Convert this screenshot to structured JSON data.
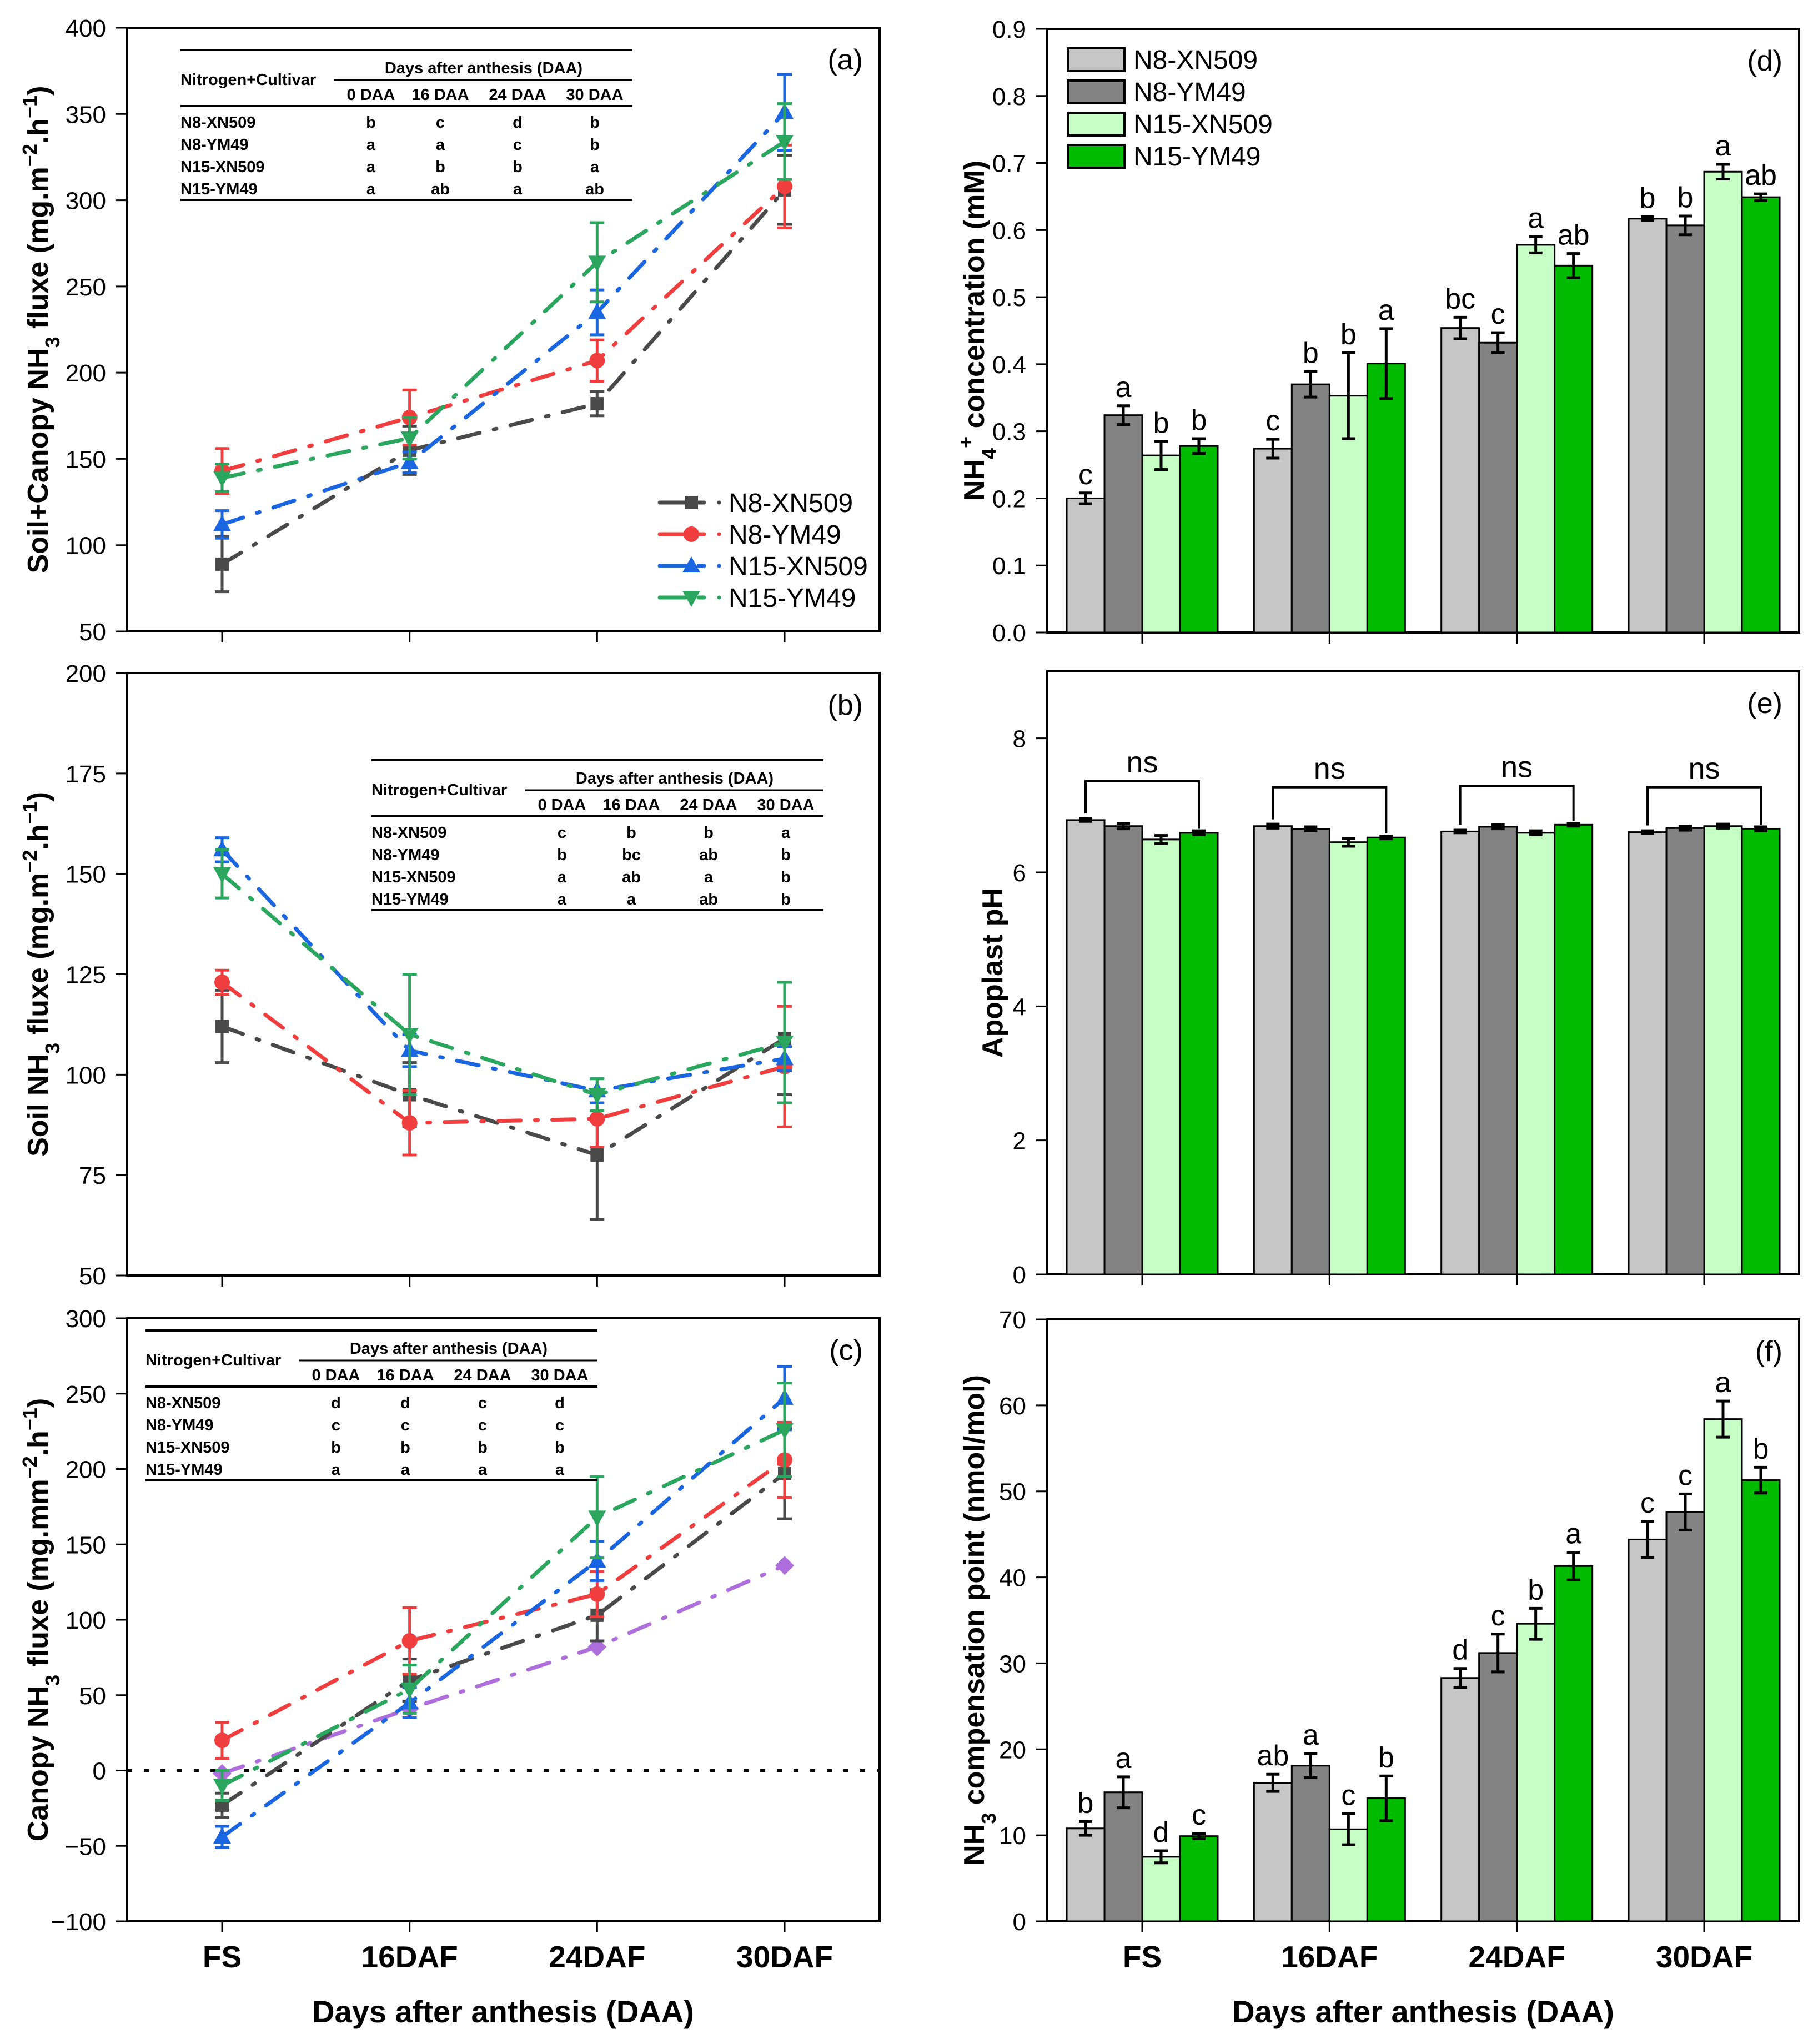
{
  "figure": {
    "xlabel": "Days after anthesis (DAA)",
    "categories": [
      "FS",
      "16DAF",
      "24DAF",
      "30DAF"
    ]
  },
  "chart_data": [
    {
      "panel": "a",
      "label": "(a)",
      "type": "line",
      "ylabel": "Soil+Canopy NH3 fluxe (mg.m−2.h−1)",
      "ylabel_segments": [
        {
          "t": "Soil+Canopy NH"
        },
        {
          "t": "3",
          "s": "sub"
        },
        {
          "t": " fluxe (mg.m"
        },
        {
          "t": "−2",
          "s": "sup"
        },
        {
          "t": ".h"
        },
        {
          "t": "−1",
          "s": "sup"
        },
        {
          "t": ")"
        }
      ],
      "xlabel": "",
      "categories": [
        "FS",
        "16DAF",
        "24DAF",
        "30DAF"
      ],
      "show_category_labels": false,
      "ylim": [
        50,
        400
      ],
      "yticks": [
        50,
        100,
        150,
        200,
        250,
        300,
        350,
        400
      ],
      "ytick_labels": [
        "50",
        "100",
        "150",
        "200",
        "250",
        "300",
        "350",
        "400"
      ],
      "series": [
        {
          "name": "N8-XN509",
          "marker": "square",
          "color": "#4a4a4a",
          "values": [
            89,
            155,
            182,
            306
          ],
          "errors": [
            16,
            14,
            7,
            20
          ]
        },
        {
          "name": "N8-YM49",
          "marker": "circle",
          "color": "#f03e3e",
          "values": [
            143,
            174,
            207,
            308
          ],
          "errors": [
            13,
            16,
            12,
            24
          ]
        },
        {
          "name": "N15-XN509",
          "marker": "triangle-up",
          "color": "#1a66e0",
          "values": [
            112,
            148,
            235,
            351
          ],
          "errors": [
            8,
            6,
            13,
            22
          ]
        },
        {
          "name": "N15-YM49",
          "marker": "triangle-down",
          "color": "#2aa65e",
          "values": [
            139,
            162,
            264,
            334
          ],
          "errors": [
            8,
            12,
            23,
            22
          ]
        }
      ],
      "legend": {
        "placement": "bottom-right",
        "entries": [
          "N8-XN509",
          "N8-YM49",
          "N15-XN509",
          "N15-YM49"
        ]
      },
      "table": {
        "placement": "top-left",
        "row_header": "Nitrogen+Cultivar",
        "group_header": "Days after anthesis (DAA)",
        "columns": [
          "0 DAA",
          "16 DAA",
          "24 DAA",
          "30 DAA"
        ],
        "rows": [
          {
            "name": "N8-XN509",
            "letters": [
              "b",
              "c",
              "d",
              "b"
            ]
          },
          {
            "name": "N8-YM49",
            "letters": [
              "a",
              "a",
              "c",
              "b"
            ]
          },
          {
            "name": "N15-XN509",
            "letters": [
              "a",
              "b",
              "b",
              "a"
            ]
          },
          {
            "name": "N15-YM49",
            "letters": [
              "a",
              "ab",
              "a",
              "ab"
            ]
          }
        ]
      }
    },
    {
      "panel": "b",
      "label": "(b)",
      "type": "line",
      "ylabel": "Soil NH3 fluxe (mg.m−2.h−1)",
      "ylabel_segments": [
        {
          "t": "Soil NH"
        },
        {
          "t": "3",
          "s": "sub"
        },
        {
          "t": " fluxe (mg.m"
        },
        {
          "t": "−2",
          "s": "sup"
        },
        {
          "t": ".h"
        },
        {
          "t": "−1",
          "s": "sup"
        },
        {
          "t": ")"
        }
      ],
      "xlabel": "",
      "categories": [
        "FS",
        "16DAF",
        "24DAF",
        "30DAF"
      ],
      "show_category_labels": false,
      "ylim": [
        50,
        200
      ],
      "yticks": [
        50,
        75,
        100,
        125,
        150,
        175,
        200
      ],
      "ytick_labels": [
        "50",
        "75",
        "100",
        "125",
        "150",
        "175",
        "200"
      ],
      "series": [
        {
          "name": "N8-XN509",
          "marker": "square",
          "color": "#4a4a4a",
          "values": [
            112,
            95,
            80,
            109
          ],
          "errors": [
            9,
            8,
            16,
            14
          ]
        },
        {
          "name": "N8-YM49",
          "marker": "circle",
          "color": "#f03e3e",
          "values": [
            123,
            88,
            89,
            102
          ],
          "errors": [
            3,
            8,
            7,
            15
          ]
        },
        {
          "name": "N15-XN509",
          "marker": "triangle-up",
          "color": "#1a66e0",
          "values": [
            156,
            106,
            96,
            104
          ],
          "errors": [
            3,
            4,
            3,
            3
          ]
        },
        {
          "name": "N15-YM49",
          "marker": "triangle-down",
          "color": "#2aa65e",
          "values": [
            150,
            110,
            95,
            108
          ],
          "errors": [
            6,
            15,
            4,
            15
          ]
        }
      ],
      "table": {
        "placement": "top-right",
        "row_header": "Nitrogen+Cultivar",
        "group_header": "Days after anthesis (DAA)",
        "columns": [
          "0 DAA",
          "16 DAA",
          "24 DAA",
          "30 DAA"
        ],
        "rows": [
          {
            "name": "N8-XN509",
            "letters": [
              "c",
              "b",
              "b",
              "a"
            ]
          },
          {
            "name": "N8-YM49",
            "letters": [
              "b",
              "bc",
              "ab",
              "b"
            ]
          },
          {
            "name": "N15-XN509",
            "letters": [
              "a",
              "ab",
              "a",
              "b"
            ]
          },
          {
            "name": "N15-YM49",
            "letters": [
              "a",
              "a",
              "ab",
              "b"
            ]
          }
        ]
      }
    },
    {
      "panel": "c",
      "label": "(c)",
      "type": "line",
      "ylabel": "Canopy NH3 fluxe (mg.mm−2.h−1)",
      "ylabel_segments": [
        {
          "t": "Canopy NH"
        },
        {
          "t": "3",
          "s": "sub"
        },
        {
          "t": " fluxe (mg.mm"
        },
        {
          "t": "−2",
          "s": "sup"
        },
        {
          "t": ".h"
        },
        {
          "t": "−1",
          "s": "sup"
        },
        {
          "t": ")"
        }
      ],
      "xlabel": "Days after anthesis (DAA)",
      "categories": [
        "FS",
        "16DAF",
        "24DAF",
        "30DAF"
      ],
      "show_category_labels": true,
      "ylim": [
        -100,
        300
      ],
      "yticks": [
        -100,
        -50,
        0,
        50,
        100,
        150,
        200,
        250,
        300
      ],
      "ytick_labels": [
        "−100",
        "−50",
        "0",
        "50",
        "100",
        "150",
        "200",
        "250",
        "300"
      ],
      "reference_lines": [
        {
          "y": 0,
          "style": "dotted"
        }
      ],
      "series": [
        {
          "name": null,
          "marker": "diamond",
          "color": "#ae6fdc",
          "values": [
            -2,
            41,
            82,
            136
          ],
          "errors": [
            0,
            0,
            0,
            0
          ]
        },
        {
          "name": "N8-XN509",
          "marker": "square",
          "color": "#4a4a4a",
          "values": [
            -23,
            60,
            103,
            197
          ],
          "errors": [
            8,
            14,
            17,
            30
          ]
        },
        {
          "name": "N8-YM49",
          "marker": "circle",
          "color": "#f03e3e",
          "values": [
            20,
            86,
            117,
            206
          ],
          "errors": [
            12,
            22,
            15,
            25
          ]
        },
        {
          "name": "N15-XN509",
          "marker": "triangle-up",
          "color": "#1a66e0",
          "values": [
            -44,
            45,
            139,
            247
          ],
          "errors": [
            7,
            10,
            13,
            21
          ]
        },
        {
          "name": "N15-YM49",
          "marker": "triangle-down",
          "color": "#2aa65e",
          "values": [
            -10,
            54,
            168,
            226
          ],
          "errors": [
            10,
            16,
            27,
            31
          ]
        }
      ],
      "table": {
        "placement": "top-left",
        "row_header": "Nitrogen+Cultivar",
        "group_header": "Days after anthesis (DAA)",
        "columns": [
          "0 DAA",
          "16 DAA",
          "24 DAA",
          "30 DAA"
        ],
        "rows": [
          {
            "name": "N8-XN509",
            "letters": [
              "d",
              "d",
              "c",
              "d"
            ]
          },
          {
            "name": "N8-YM49",
            "letters": [
              "c",
              "c",
              "c",
              "c"
            ]
          },
          {
            "name": "N15-XN509",
            "letters": [
              "b",
              "b",
              "b",
              "b"
            ]
          },
          {
            "name": "N15-YM49",
            "letters": [
              "a",
              "a",
              "a",
              "a"
            ]
          }
        ]
      }
    },
    {
      "panel": "d",
      "label": "(d)",
      "type": "bar",
      "ylabel": "NH4+ concentration (mM)",
      "ylabel_segments": [
        {
          "t": "NH"
        },
        {
          "t": "4",
          "s": "sub"
        },
        {
          "t": "+",
          "s": "sup"
        },
        {
          "t": " concentration (mM)"
        }
      ],
      "xlabel": "",
      "categories": [
        "FS",
        "16DAF",
        "24DAF",
        "30DAF"
      ],
      "show_category_labels": false,
      "ylim": [
        0,
        0.9
      ],
      "yticks": [
        0,
        0.1,
        0.2,
        0.3,
        0.4,
        0.5,
        0.6,
        0.7,
        0.8,
        0.9
      ],
      "ytick_labels": [
        "0.0",
        "0.1",
        "0.2",
        "0.3",
        "0.4",
        "0.5",
        "0.6",
        "0.7",
        "0.8",
        "0.9"
      ],
      "series": [
        {
          "name": "N8-XN509",
          "color": "#c6c6c6",
          "values": [
            0.2,
            0.274,
            0.454,
            0.617
          ],
          "errors": [
            0.008,
            0.014,
            0.016,
            0.003
          ],
          "letters": [
            "c",
            "c",
            "bc",
            "b"
          ]
        },
        {
          "name": "N8-YM49",
          "color": "#838383",
          "values": [
            0.324,
            0.37,
            0.432,
            0.607
          ],
          "errors": [
            0.014,
            0.019,
            0.015,
            0.014
          ],
          "letters": [
            "a",
            "b",
            "c",
            "b"
          ]
        },
        {
          "name": "N15-XN509",
          "color": "#c6fec6",
          "values": [
            0.264,
            0.353,
            0.578,
            0.687
          ],
          "errors": [
            0.021,
            0.064,
            0.012,
            0.011
          ],
          "letters": [
            "b",
            "b",
            "a",
            "a"
          ]
        },
        {
          "name": "N15-YM49",
          "color": "#00bb00",
          "values": [
            0.278,
            0.401,
            0.547,
            0.649
          ],
          "errors": [
            0.011,
            0.052,
            0.018,
            0.005
          ],
          "letters": [
            "b",
            "a",
            "ab",
            "ab"
          ]
        }
      ],
      "legend": {
        "placement": "top-left",
        "entries": [
          "N8-XN509",
          "N8-YM49",
          "N15-XN509",
          "N15-YM49"
        ]
      }
    },
    {
      "panel": "e",
      "label": "(e)",
      "type": "bar",
      "ylabel": "Apoplast pH",
      "ylabel_segments": [
        {
          "t": "Apoplast pH"
        }
      ],
      "xlabel": "",
      "categories": [
        "FS",
        "16DAF",
        "24DAF",
        "30DAF"
      ],
      "show_category_labels": false,
      "ylim": [
        0,
        9
      ],
      "yticks": [
        0,
        2,
        4,
        6,
        8
      ],
      "ytick_labels": [
        "0",
        "2",
        "4",
        "6",
        "8"
      ],
      "series": [
        {
          "name": "N8-XN509",
          "color": "#c6c6c6",
          "values": [
            6.78,
            6.69,
            6.61,
            6.6
          ],
          "errors": [
            0.02,
            0.03,
            0.02,
            0.02
          ]
        },
        {
          "name": "N8-YM49",
          "color": "#838383",
          "values": [
            6.69,
            6.65,
            6.68,
            6.66
          ],
          "errors": [
            0.04,
            0.03,
            0.03,
            0.03
          ]
        },
        {
          "name": "N15-XN509",
          "color": "#c6fec6",
          "values": [
            6.49,
            6.45,
            6.59,
            6.69
          ],
          "errors": [
            0.06,
            0.06,
            0.03,
            0.03
          ]
        },
        {
          "name": "N15-YM49",
          "color": "#00bb00",
          "values": [
            6.59,
            6.52,
            6.71,
            6.65
          ],
          "errors": [
            0.03,
            0.02,
            0.02,
            0.03
          ]
        }
      ],
      "group_annotations": [
        {
          "category": "FS",
          "text": "ns"
        },
        {
          "category": "16DAF",
          "text": "ns"
        },
        {
          "category": "24DAF",
          "text": "ns"
        },
        {
          "category": "30DAF",
          "text": "ns"
        }
      ]
    },
    {
      "panel": "f",
      "label": "(f)",
      "type": "bar",
      "ylabel": "NH3 compensation point (nmol/mol)",
      "ylabel_segments": [
        {
          "t": "NH"
        },
        {
          "t": "3",
          "s": "sub"
        },
        {
          "t": " compensation point (nmol/mol)"
        }
      ],
      "xlabel": "Days after anthesis (DAA)",
      "categories": [
        "FS",
        "16DAF",
        "24DAF",
        "30DAF"
      ],
      "show_category_labels": true,
      "ylim": [
        0,
        70
      ],
      "yticks": [
        0,
        10,
        20,
        30,
        40,
        50,
        60,
        70
      ],
      "ytick_labels": [
        "0",
        "10",
        "20",
        "30",
        "40",
        "50",
        "60",
        "70"
      ],
      "series": [
        {
          "name": "N8-XN509",
          "color": "#c6c6c6",
          "values": [
            10.8,
            16.1,
            28.3,
            44.4
          ],
          "errors": [
            0.8,
            1.0,
            1.1,
            2.1
          ],
          "letters": [
            "b",
            "ab",
            "d",
            "c"
          ]
        },
        {
          "name": "N8-YM49",
          "color": "#838383",
          "values": [
            15.0,
            18.1,
            31.2,
            47.6
          ],
          "errors": [
            1.8,
            1.4,
            2.2,
            2.1
          ],
          "letters": [
            "a",
            "a",
            "c",
            "c"
          ]
        },
        {
          "name": "N15-XN509",
          "color": "#c6fec6",
          "values": [
            7.5,
            10.7,
            34.6,
            58.4
          ],
          "errors": [
            0.7,
            1.8,
            1.8,
            2.1
          ],
          "letters": [
            "d",
            "c",
            "b",
            "a"
          ]
        },
        {
          "name": "N15-YM49",
          "color": "#00bb00",
          "values": [
            9.9,
            14.3,
            41.3,
            51.3
          ],
          "errors": [
            0.3,
            2.6,
            1.6,
            1.5
          ],
          "letters": [
            "c",
            "b",
            "a",
            "b"
          ]
        }
      ]
    }
  ]
}
